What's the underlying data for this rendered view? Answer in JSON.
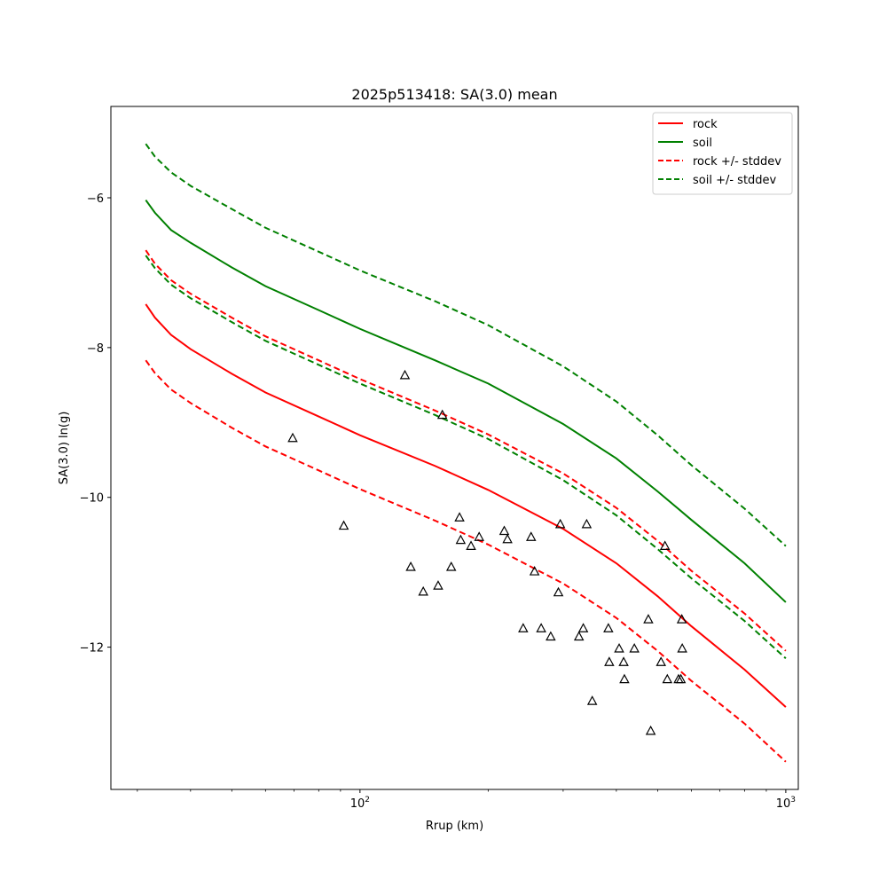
{
  "chart_data": {
    "type": "line",
    "title": "2025p513418: SA(3.0) mean",
    "xlabel": "Rrup (km)",
    "ylabel": "SA(3.0) ln(g)",
    "xscale": "log",
    "xlim": [
      26,
      1070
    ],
    "ylim": [
      -13.9,
      -4.78
    ],
    "yticks": [
      -12,
      -10,
      -8,
      -6
    ],
    "xticks": [
      {
        "value": 100,
        "base": "10",
        "exp": "2"
      },
      {
        "value": 1000,
        "base": "10",
        "exp": "3"
      }
    ],
    "grid": false,
    "legend_position": "top-right",
    "series": [
      {
        "name": "rock",
        "style": "solid",
        "color": "#ff0000",
        "x": [
          31.4,
          33,
          36,
          40,
          50,
          60,
          80,
          100,
          150,
          200,
          300,
          400,
          500,
          600,
          800,
          1000
        ],
        "y": [
          -7.42,
          -7.6,
          -7.83,
          -8.02,
          -8.35,
          -8.6,
          -8.92,
          -9.17,
          -9.58,
          -9.9,
          -10.42,
          -10.88,
          -11.32,
          -11.72,
          -12.3,
          -12.8
        ]
      },
      {
        "name": "soil",
        "style": "solid",
        "color": "#008000",
        "x": [
          31.4,
          33,
          36,
          40,
          50,
          60,
          80,
          100,
          150,
          200,
          300,
          400,
          500,
          600,
          800,
          1000
        ],
        "y": [
          -6.03,
          -6.2,
          -6.43,
          -6.6,
          -6.93,
          -7.18,
          -7.5,
          -7.75,
          -8.17,
          -8.48,
          -9.02,
          -9.48,
          -9.92,
          -10.3,
          -10.88,
          -11.4
        ]
      },
      {
        "name": "rock +/- stddev",
        "style": "dashed",
        "color": "#ff0000",
        "x": [
          31.4,
          33,
          36,
          40,
          50,
          60,
          80,
          100,
          150,
          200,
          300,
          400,
          500,
          600,
          800,
          1000
        ],
        "y": [
          -6.7,
          -6.88,
          -7.1,
          -7.28,
          -7.6,
          -7.85,
          -8.17,
          -8.42,
          -8.84,
          -9.16,
          -9.68,
          -10.14,
          -10.58,
          -10.98,
          -11.55,
          -12.05
        ]
      },
      {
        "name": "",
        "style": "dashed",
        "color": "#ff0000",
        "x": [
          31.4,
          33,
          36,
          40,
          50,
          60,
          80,
          100,
          150,
          200,
          300,
          400,
          500,
          600,
          800,
          1000
        ],
        "y": [
          -8.17,
          -8.34,
          -8.56,
          -8.74,
          -9.07,
          -9.32,
          -9.64,
          -9.89,
          -10.31,
          -10.63,
          -11.15,
          -11.61,
          -12.05,
          -12.45,
          -13.02,
          -13.53
        ]
      },
      {
        "name": "soil +/- stddev",
        "style": "dashed",
        "color": "#008000",
        "x": [
          31.4,
          33,
          36,
          40,
          50,
          60,
          80,
          100,
          150,
          200,
          300,
          400,
          500,
          600,
          800,
          1000
        ],
        "y": [
          -5.28,
          -5.45,
          -5.66,
          -5.84,
          -6.15,
          -6.4,
          -6.72,
          -6.97,
          -7.38,
          -7.7,
          -8.25,
          -8.72,
          -9.17,
          -9.57,
          -10.15,
          -10.65
        ]
      },
      {
        "name": "",
        "style": "dashed",
        "color": "#008000",
        "x": [
          31.4,
          33,
          36,
          40,
          50,
          60,
          80,
          100,
          150,
          200,
          300,
          400,
          500,
          600,
          800,
          1000
        ],
        "y": [
          -6.77,
          -6.94,
          -7.16,
          -7.34,
          -7.66,
          -7.91,
          -8.23,
          -8.48,
          -8.9,
          -9.22,
          -9.77,
          -10.24,
          -10.69,
          -11.08,
          -11.65,
          -12.15
        ]
      }
    ],
    "observations": {
      "marker": "triangle",
      "color": "#000000",
      "x": [
        69.5,
        91.6,
        127.5,
        131.6,
        140.8,
        152.6,
        156.1,
        163.8,
        171.3,
        172.4,
        182.3,
        190.5,
        218.2,
        222.0,
        241.7,
        252.3,
        257.0,
        266.4,
        280.5,
        292.4,
        295.4,
        326.8,
        334.5,
        340.7,
        351.1,
        383.1,
        385.0,
        406.1,
        416.1,
        417.8,
        440.9,
        475.6,
        481.7,
        509.3,
        520.3,
        526.9,
        559.9,
        567.0,
        569.9,
        571.2
      ],
      "y": [
        -9.21,
        -10.38,
        -8.37,
        -10.93,
        -11.26,
        -11.18,
        -8.9,
        -10.93,
        -10.27,
        -10.57,
        -10.65,
        -10.53,
        -10.45,
        -10.56,
        -11.75,
        -10.53,
        -10.99,
        -11.75,
        -11.86,
        -11.27,
        -10.36,
        -11.86,
        -11.75,
        -10.36,
        -12.72,
        -11.75,
        -12.2,
        -12.02,
        -12.2,
        -12.43,
        -12.02,
        -11.63,
        -13.12,
        -12.2,
        -10.65,
        -12.43,
        -12.43,
        -12.43,
        -11.63,
        -12.02
      ]
    }
  }
}
